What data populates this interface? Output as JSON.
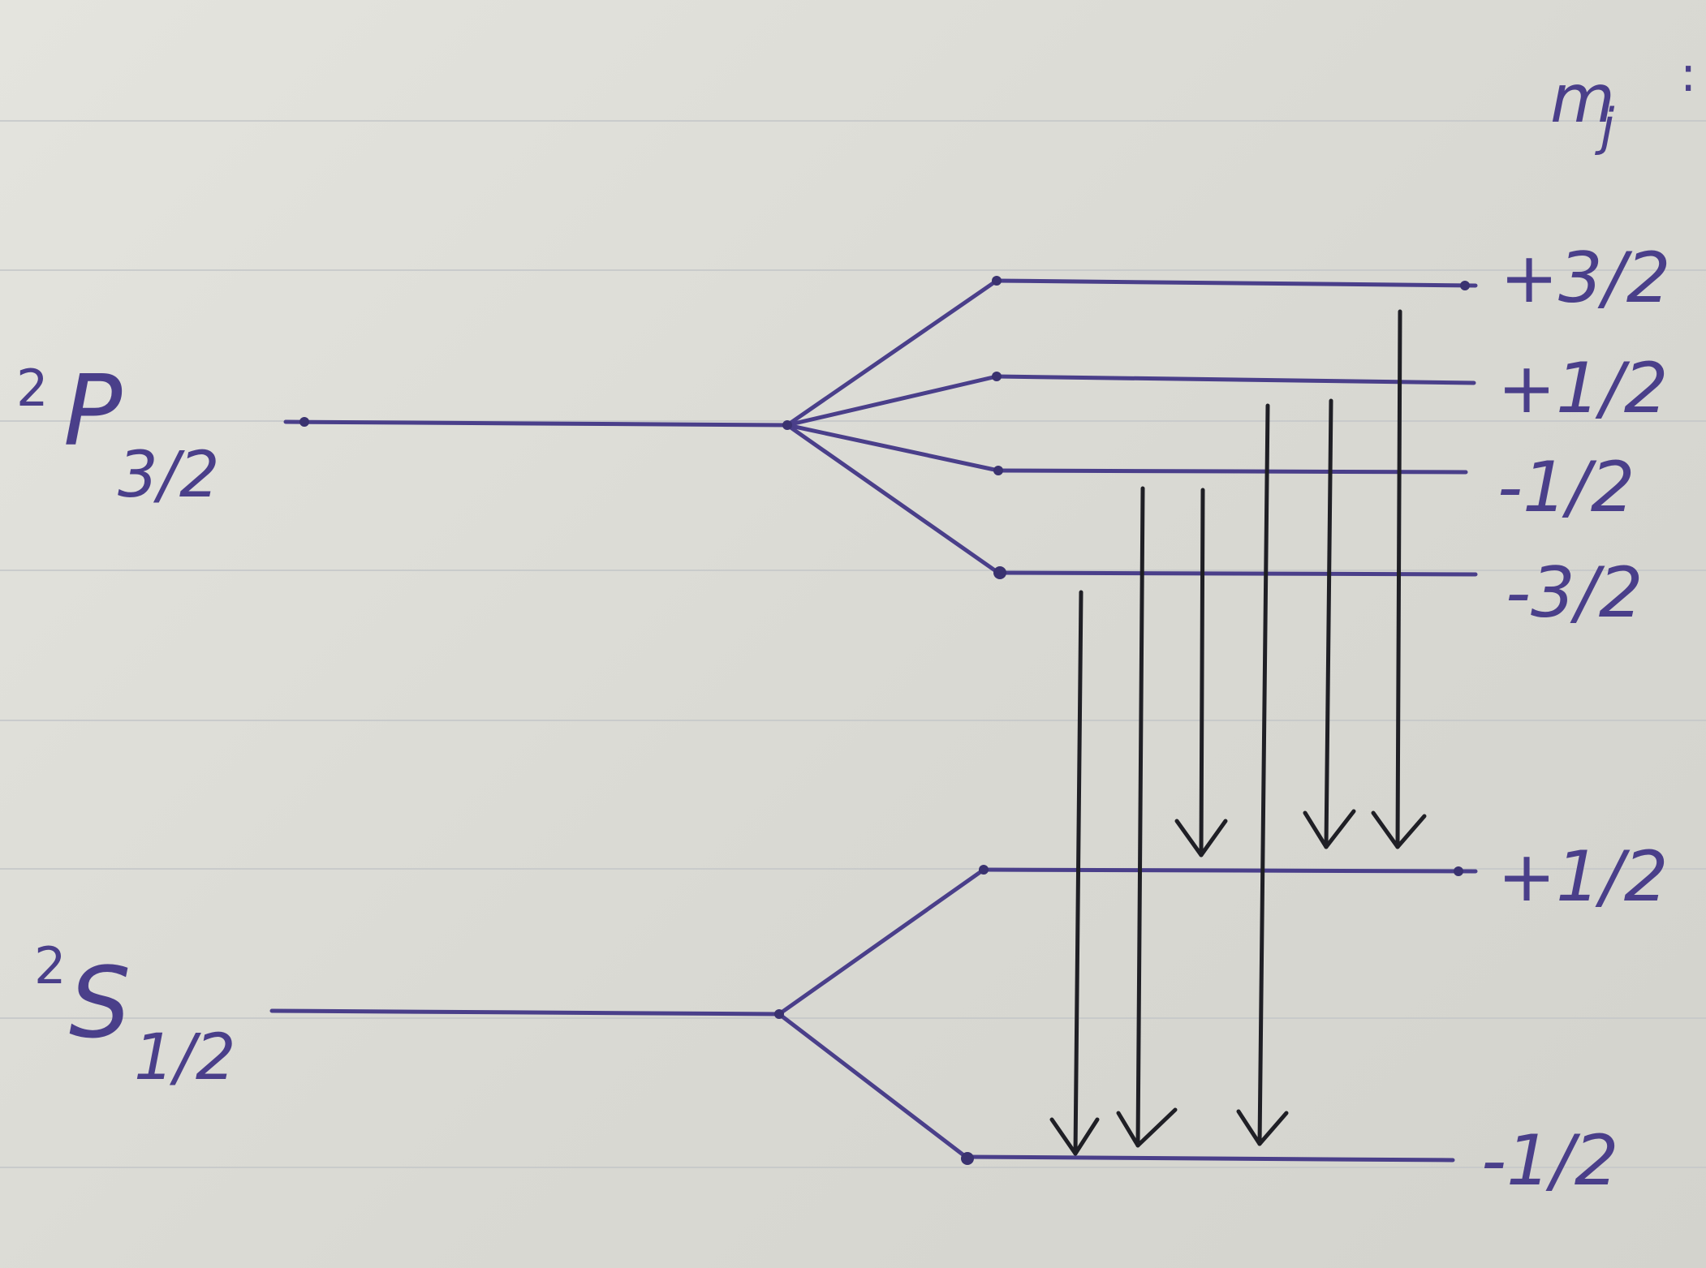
{
  "column_header": "m",
  "column_header_sub": "j",
  "column_header_suffix": ":",
  "upper_term": {
    "superscript": "2",
    "letter": "P",
    "subscript": "3/2",
    "mj_labels": [
      "+3/2",
      "+1/2",
      "-1/2",
      "-3/2"
    ]
  },
  "lower_term": {
    "superscript": "2",
    "letter": "S",
    "subscript": "1/2",
    "mj_labels": [
      "+1/2",
      "-1/2"
    ]
  },
  "colors": {
    "ink_blue": "#4a3f8a",
    "ink_black": "#1f1f25",
    "paper": "#dcdcd6",
    "ruling": "#c6c8c9"
  }
}
